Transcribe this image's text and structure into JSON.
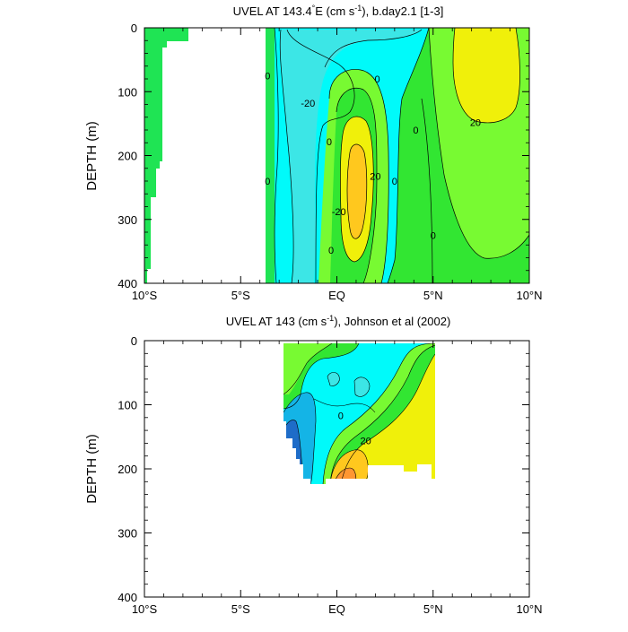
{
  "chart_data": [
    {
      "type": "contour",
      "title_parts": [
        "UVEL AT 143.4",
        "°",
        "E (cm s",
        "-1",
        "), b.day2.1 [1-3]"
      ],
      "ylabel": "DEPTH (m)",
      "xlim": [
        -10,
        10
      ],
      "ylim": [
        400,
        0
      ],
      "x_ticks": [
        -10,
        -5,
        0,
        5,
        10
      ],
      "x_tick_labels": [
        "10°S",
        "5°S",
        "EQ",
        "5°N",
        "10°N"
      ],
      "y_ticks": [
        0,
        100,
        200,
        300,
        400
      ],
      "y_tick_labels": [
        "0",
        "100",
        "200",
        "300",
        "400"
      ],
      "contour_levels_cm_s": [
        -30,
        -20,
        -10,
        0,
        10,
        20,
        30
      ],
      "contour_labels": [
        {
          "text": "0",
          "x": -3.6,
          "depth": 75
        },
        {
          "text": "0",
          "x": -3.6,
          "depth": 240
        },
        {
          "text": "-20",
          "x": -1.5,
          "depth": 118
        },
        {
          "text": "0",
          "x": -0.4,
          "depth": 178
        },
        {
          "text": "0",
          "x": 2.1,
          "depth": 80
        },
        {
          "text": "0",
          "x": 4.1,
          "depth": 160
        },
        {
          "text": "20",
          "x": 7.2,
          "depth": 148
        },
        {
          "text": "20",
          "x": 2.0,
          "depth": 232
        },
        {
          "text": "-20",
          "x": 0.1,
          "depth": 288
        },
        {
          "text": "0",
          "x": 3.0,
          "depth": 240
        },
        {
          "text": "0",
          "x": -0.3,
          "depth": 348
        },
        {
          "text": "0",
          "x": 5.0,
          "depth": 325
        }
      ]
    },
    {
      "type": "contour",
      "title_parts": [
        "UVEL AT 143 (cm s",
        "-1",
        "), Johnson et al (2002)"
      ],
      "ylabel": "DEPTH (m)",
      "xlim": [
        -10,
        10
      ],
      "ylim": [
        400,
        0
      ],
      "x_ticks": [
        -10,
        -5,
        0,
        5,
        10
      ],
      "x_tick_labels": [
        "10°S",
        "5°S",
        "EQ",
        "5°N",
        "10°N"
      ],
      "y_ticks": [
        0,
        100,
        200,
        300,
        400
      ],
      "y_tick_labels": [
        "0",
        "100",
        "200",
        "300",
        "400"
      ],
      "data_extent": {
        "lat": [
          -2.8,
          5.0
        ],
        "depth": [
          7,
          225
        ]
      },
      "contour_levels_cm_s": [
        -40,
        -30,
        -20,
        -10,
        0,
        10,
        20,
        30
      ],
      "contour_labels": [
        {
          "text": "0",
          "x": 0.2,
          "depth": 117
        },
        {
          "text": "20",
          "x": 1.5,
          "depth": 156
        }
      ]
    }
  ],
  "colors": {
    "land_green": "#1FE454",
    "strong_west": "#1E6CC8",
    "west": "#14B4E6",
    "weak_west": "#3CE6E6",
    "weak_east": "#00FAFA",
    "east_light": "#78FA32",
    "east": "#32E632",
    "east_yellow": "#F0F00A",
    "strong_east": "#FFC81E",
    "strongest_east": "#FF9632"
  }
}
